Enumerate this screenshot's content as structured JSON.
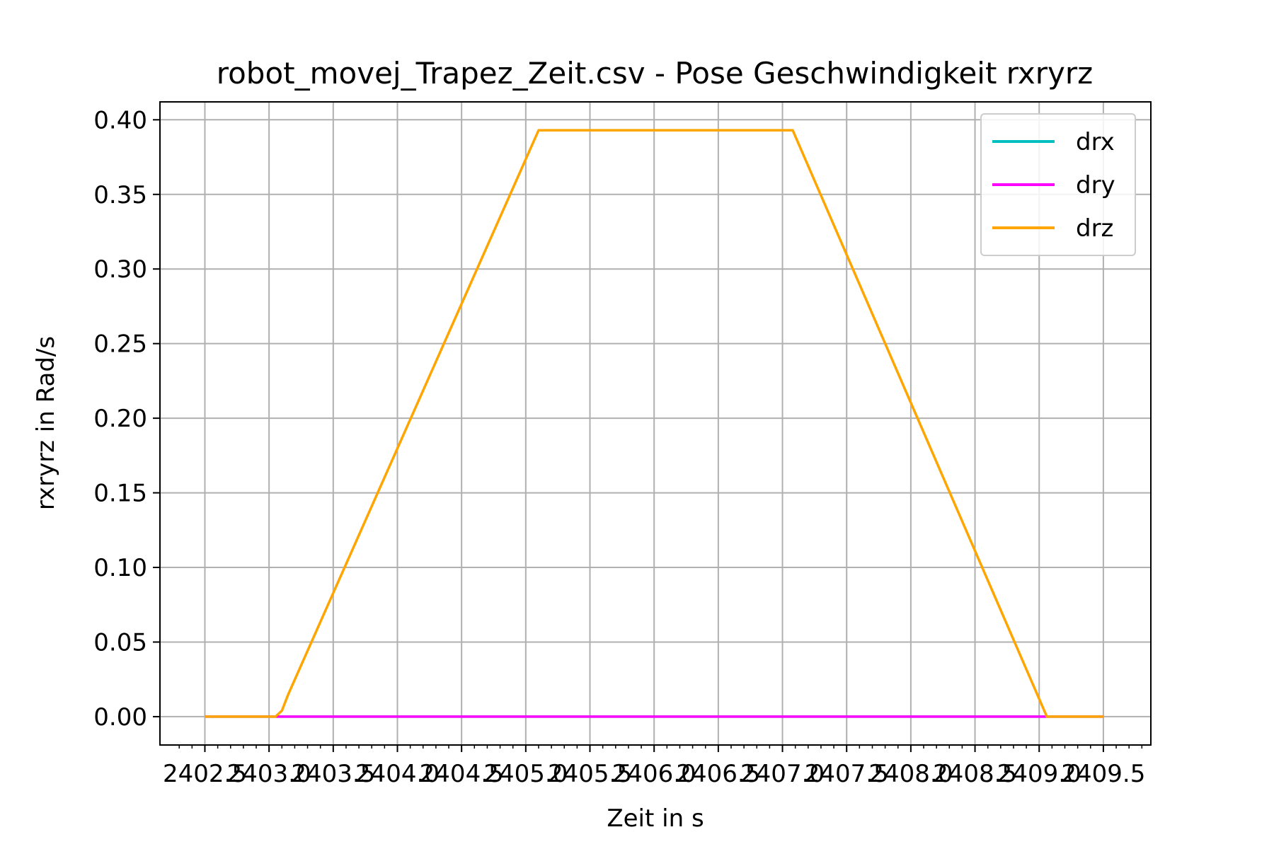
{
  "chart_data": {
    "type": "line",
    "title": "robot_movej_Trapez_Zeit.csv - Pose Geschwindigkeit rxryrz",
    "xlabel": "Zeit in s",
    "ylabel": "rxryrz in Rad/s",
    "xlim": [
      2402.15,
      2409.87
    ],
    "ylim": [
      -0.019,
      0.412
    ],
    "x_ticks": [
      2402.5,
      2403.0,
      2403.5,
      2404.0,
      2404.5,
      2405.0,
      2405.5,
      2406.0,
      2406.5,
      2407.0,
      2407.5,
      2408.0,
      2408.5,
      2409.0,
      2409.5
    ],
    "x_tick_labels": [
      "2402.5",
      "2403.0",
      "2403.5",
      "2404.0",
      "2404.5",
      "2405.0",
      "2405.5",
      "2406.0",
      "2406.5",
      "2407.0",
      "2407.5",
      "2408.0",
      "2408.5",
      "2409.0",
      "2409.5"
    ],
    "y_ticks": [
      0.0,
      0.05,
      0.1,
      0.15,
      0.2,
      0.25,
      0.3,
      0.35,
      0.4
    ],
    "y_tick_labels": [
      "0.00",
      "0.05",
      "0.10",
      "0.15",
      "0.20",
      "0.25",
      "0.30",
      "0.35",
      "0.40"
    ],
    "grid": true,
    "legend_position": "top-right",
    "series": [
      {
        "name": "drx",
        "color": "#00bfbf",
        "points": [
          [
            2402.5,
            0.0
          ],
          [
            2409.5,
            0.0
          ]
        ]
      },
      {
        "name": "dry",
        "color": "#ff00ff",
        "points": [
          [
            2402.5,
            0.0
          ],
          [
            2409.5,
            0.0
          ]
        ]
      },
      {
        "name": "drz",
        "color": "#ffa500",
        "points": [
          [
            2402.5,
            0.0
          ],
          [
            2403.0,
            0.0
          ],
          [
            2403.05,
            0.0
          ],
          [
            2403.1,
            0.004
          ],
          [
            2403.15,
            0.015
          ],
          [
            2405.1,
            0.393
          ],
          [
            2407.08,
            0.393
          ],
          [
            2409.06,
            0.0
          ],
          [
            2409.5,
            0.0
          ]
        ]
      }
    ]
  }
}
